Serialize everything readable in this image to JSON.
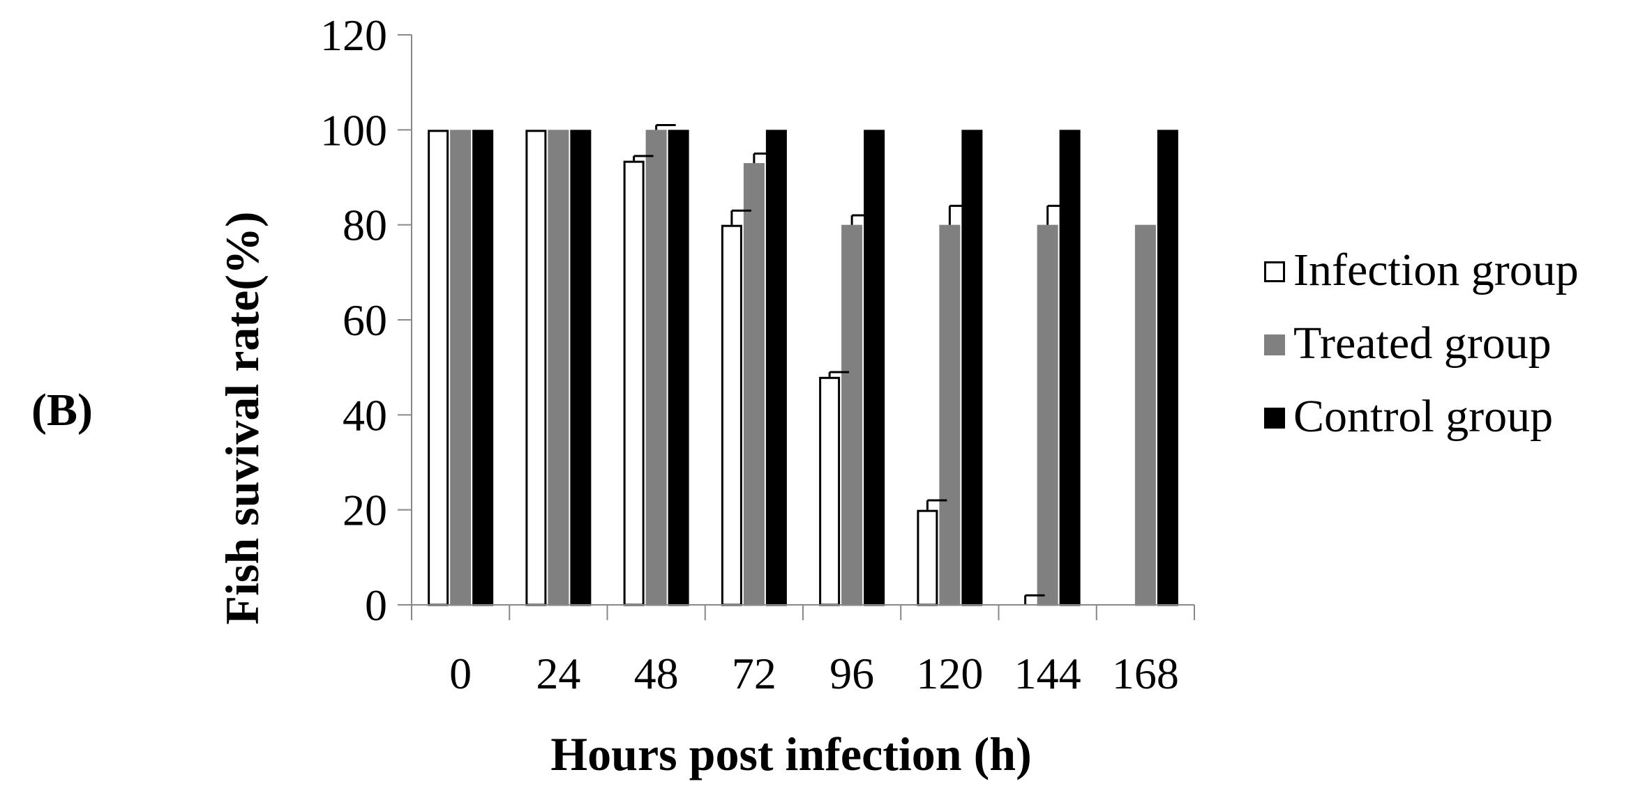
{
  "panel_label": "(B)",
  "chart_data": {
    "type": "bar",
    "xlabel": "Hours post infection (h)",
    "ylabel": "Fish suvival rate(%)",
    "categories": [
      "0",
      "24",
      "48",
      "72",
      "96",
      "120",
      "144",
      "168"
    ],
    "ylim": [
      0,
      120
    ],
    "yticks": [
      "0",
      "20",
      "40",
      "60",
      "80",
      "100",
      "120"
    ],
    "grid": false,
    "legend_position": "right",
    "series": [
      {
        "name": "Infection group",
        "color": "#ffffff",
        "stroke": "#000000",
        "values": [
          100,
          100,
          93.5,
          80,
          48,
          20,
          0,
          0
        ],
        "errors": [
          0,
          0,
          1,
          3,
          1,
          2,
          2,
          0
        ]
      },
      {
        "name": "Treated group",
        "color": "#808080",
        "stroke": "#808080",
        "values": [
          100,
          100,
          100,
          93,
          80,
          80,
          80,
          80
        ],
        "errors": [
          0,
          0,
          1,
          2,
          2,
          4,
          4,
          0
        ]
      },
      {
        "name": "Control group",
        "color": "#000000",
        "stroke": "#000000",
        "values": [
          100,
          100,
          100,
          100,
          100,
          100,
          100,
          100
        ],
        "errors": [
          0,
          0,
          0,
          0,
          0,
          0,
          0,
          0
        ]
      }
    ]
  }
}
